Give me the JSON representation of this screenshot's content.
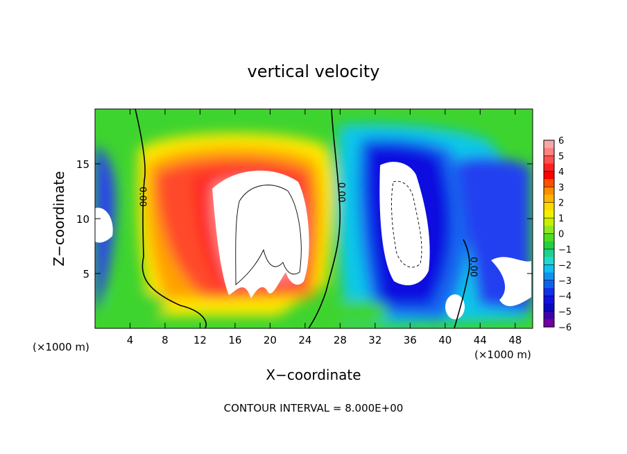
{
  "chart_data": {
    "type": "heatmap",
    "title": "vertical velocity",
    "xlabel": "X−coordinate",
    "ylabel": "Z−coordinate",
    "x_unit_left": "(×1000 m)",
    "x_unit_right": "(×1000 m)",
    "footer": "CONTOUR INTERVAL = 8.000E+00",
    "xlim": [
      0,
      50
    ],
    "ylim": [
      0,
      20
    ],
    "x_ticks": [
      4,
      8,
      12,
      16,
      20,
      24,
      28,
      32,
      36,
      40,
      44,
      48
    ],
    "y_ticks": [
      5,
      10,
      15
    ],
    "colorbar": {
      "ticks": [
        6,
        5,
        4,
        3,
        2,
        1,
        0,
        -1,
        -2,
        -3,
        -4,
        -5,
        -6
      ],
      "labels": [
        "6",
        "5",
        "4",
        "3",
        "2",
        "1",
        "0",
        "−1",
        "−2",
        "−3",
        "−4",
        "−5",
        "−6"
      ],
      "range": [
        -6,
        6
      ]
    },
    "contour_labels": [
      {
        "text": "0.00",
        "x": 5.5,
        "y": 12
      },
      {
        "text": "0.00",
        "x": 28.2,
        "y": 12.4
      },
      {
        "text": "0.00",
        "x": 43.3,
        "y": 5.6
      }
    ],
    "features": [
      {
        "sign": "updraft",
        "x": 8.5,
        "z": 13.5,
        "peak": 6
      },
      {
        "sign": "updraft",
        "x": 19.5,
        "z": 10,
        "peak": 16
      },
      {
        "sign": "updraft",
        "x": 40.7,
        "z": 1.8,
        "peak": 8
      },
      {
        "sign": "downdraft",
        "x": 35,
        "z": 10.5,
        "peak": -14
      },
      {
        "sign": "downdraft",
        "x": 1.2,
        "z": 10,
        "peak": -7
      },
      {
        "sign": "downdraft",
        "x": 47.5,
        "z": 5.5,
        "peak": -8
      }
    ]
  }
}
